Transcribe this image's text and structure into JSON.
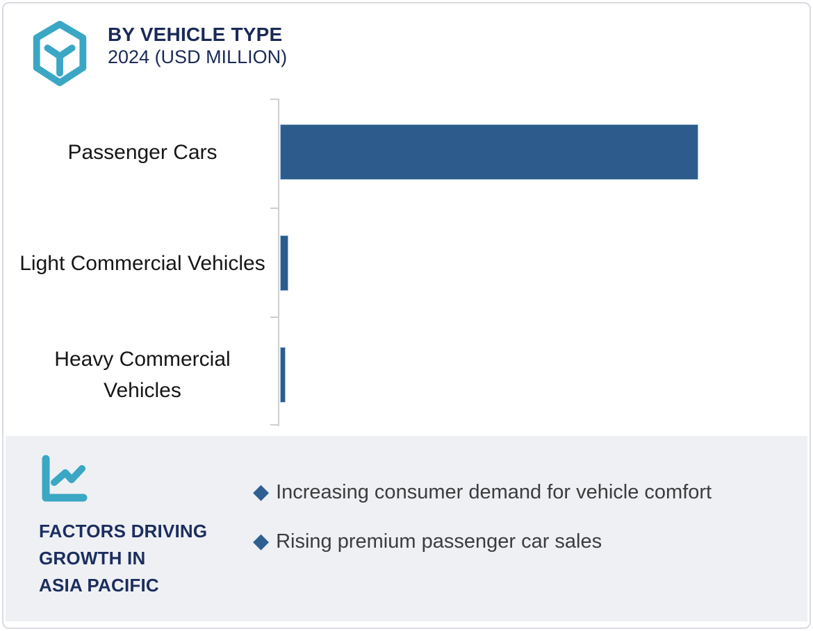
{
  "header": {
    "title": "BY VEHICLE TYPE",
    "subtitle": "2024 (USD MILLION)",
    "logo_icon": "hexagon-cube-icon",
    "logo_color": "#3aa7c4",
    "title_color": "#1a2a57"
  },
  "chart_data": {
    "type": "bar",
    "orientation": "horizontal",
    "title": "BY VEHICLE TYPE",
    "subtitle": "2024 (USD MILLION)",
    "categories": [
      "Passenger Cars",
      "Light Commercial Vehicles",
      "Heavy Commercial Vehicles"
    ],
    "values": [
      100,
      1.7,
      1.0
    ],
    "values_note": "no numeric axis labels shown; values estimated relative to longest bar = 100",
    "xlabel": "",
    "ylabel": "",
    "xlim": [
      0,
      106
    ],
    "grid": false,
    "legend": false,
    "bar_color": "#2d5c8c",
    "bar_border_color": "#a6c5e3",
    "axis_color": "#cfcfcf"
  },
  "factors_panel": {
    "heading": "FACTORS DRIVING\nGROWTH IN\nASIA PACIFIC",
    "heading_color": "#1c2d5e",
    "icon": "line-chart-icon",
    "icon_color": "#3aa7c4",
    "background": "#eef0f4",
    "bullet_marker": "◆",
    "bullet_color": "#2e6092",
    "bullets": [
      "Increasing consumer demand for vehicle comfort",
      "Rising premium passenger car sales"
    ]
  }
}
